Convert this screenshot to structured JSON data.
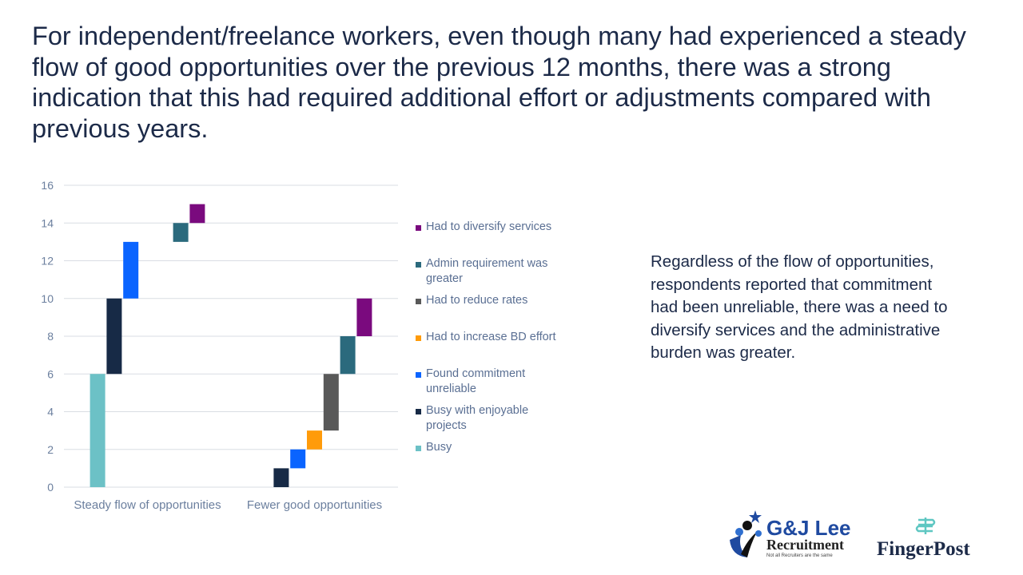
{
  "title": "For independent/freelance workers, even though many had experienced a steady flow of good opportunities over the previous 12 months, there was a strong indication that this had required additional effort or adjustments compared with previous years.",
  "side_text": "Regardless of the flow of opportunities, respondents reported that commitment had been unreliable, there was a need to diversify services and the administrative burden was greater.",
  "logos": {
    "gjlee": {
      "name": "G&J Lee",
      "sub": "Recruitment",
      "tagline": "Not all Recruiters are the same"
    },
    "fingerpost": {
      "name": "FingerPost"
    }
  },
  "chart_data": {
    "type": "bar",
    "subtype": "floating-stacked",
    "categories": [
      "Steady flow of opportunities",
      "Fewer good opportunities"
    ],
    "ylim": [
      0,
      16
    ],
    "yticks": [
      0,
      2,
      4,
      6,
      8,
      10,
      12,
      14,
      16
    ],
    "grid": true,
    "legend_position": "right",
    "series": [
      {
        "name": "Busy",
        "color": "#6cc1c6",
        "values": [
          6,
          0
        ],
        "base": [
          0,
          0
        ]
      },
      {
        "name": "Busy with enjoyable projects",
        "color": "#172a46",
        "values": [
          4,
          1
        ],
        "base": [
          6,
          0
        ]
      },
      {
        "name": "Found commitment unreliable",
        "color": "#0a64ff",
        "values": [
          3,
          1
        ],
        "base": [
          10,
          1
        ]
      },
      {
        "name": "Had to increase BD effort",
        "color": "#ff9b0a",
        "values": [
          0,
          1
        ],
        "base": [
          13,
          2
        ]
      },
      {
        "name": "Had to reduce rates",
        "color": "#595959",
        "values": [
          0,
          3
        ],
        "base": [
          13,
          3
        ]
      },
      {
        "name": "Admin requirement was greater",
        "color": "#2b6a7d",
        "values": [
          1,
          2
        ],
        "base": [
          13,
          6
        ]
      },
      {
        "name": "Had to diversify services",
        "color": "#7a0a7e",
        "values": [
          1,
          2
        ],
        "base": [
          14,
          8
        ]
      }
    ]
  }
}
